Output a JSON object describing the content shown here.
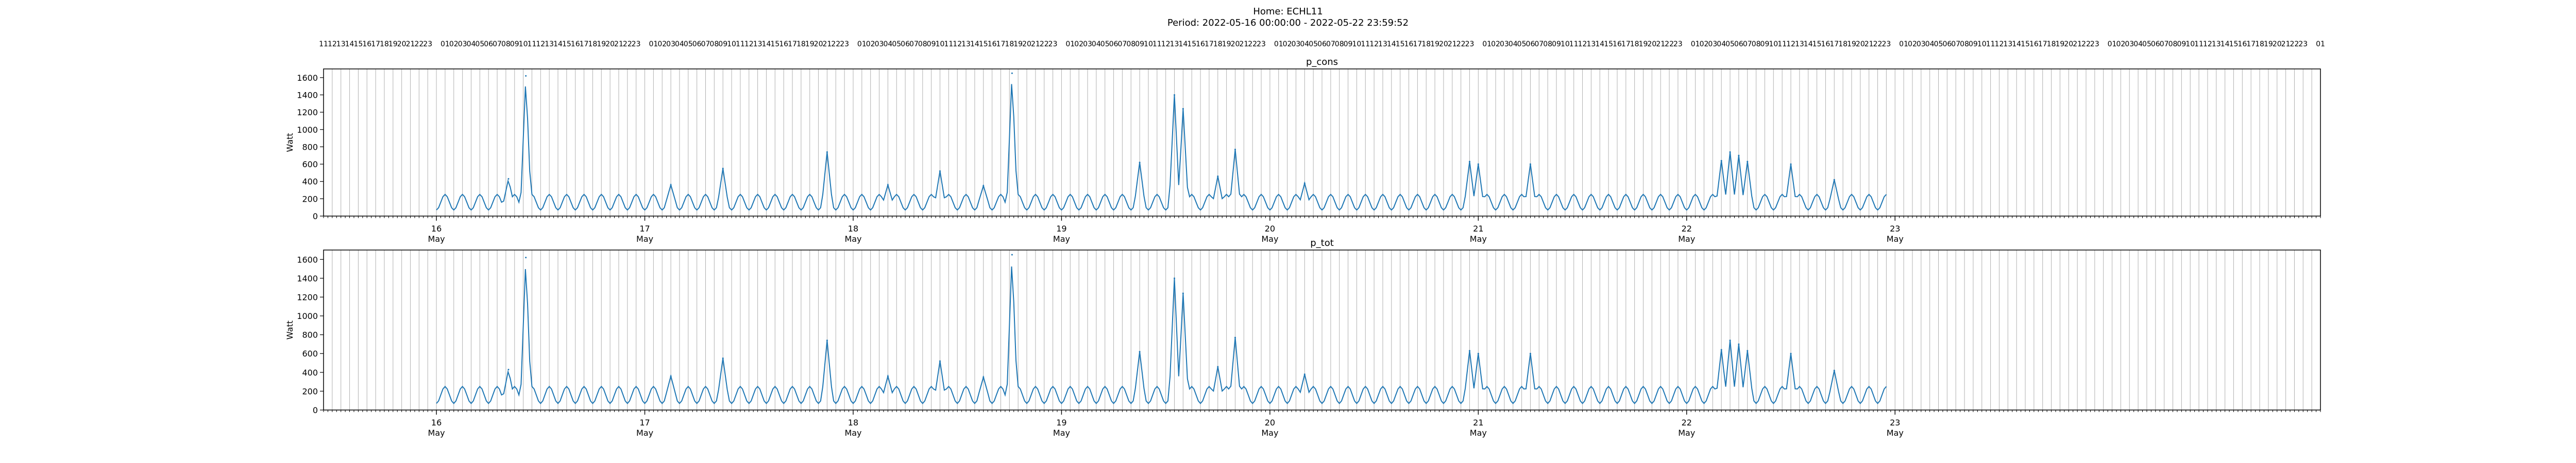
{
  "figure": {
    "title_line1": "Home: ECHL11",
    "title_line2": "Period: 2022-05-16 00:00:00 - 2022-05-22 23:59:52"
  },
  "colors": {
    "line": "#1f77b4",
    "grid": "#b0b0b0",
    "axis": "#000000"
  },
  "chart_data": [
    {
      "type": "line",
      "title": "p_cons",
      "xlabel": "",
      "ylabel": "Watt",
      "x_unit": "hours since 2022-05-16 00:00",
      "xlim": [
        -13,
        217
      ],
      "ylim": [
        0,
        1700
      ],
      "yticks": [
        0,
        200,
        400,
        600,
        800,
        1000,
        1200,
        1400,
        1600
      ],
      "grid": "vertical hourly lines",
      "hour_labels_top": true,
      "day_labels": [
        {
          "day": "16",
          "month": "May"
        },
        {
          "day": "17",
          "month": "May"
        },
        {
          "day": "18",
          "month": "May"
        },
        {
          "day": "19",
          "month": "May"
        },
        {
          "day": "20",
          "month": "May"
        },
        {
          "day": "21",
          "month": "May"
        },
        {
          "day": "22",
          "month": "May"
        },
        {
          "day": "23",
          "month": "May"
        }
      ],
      "baseline": {
        "start": 0,
        "end": 167,
        "low": 70,
        "high": 250,
        "period": 2
      },
      "spikes": [
        {
          "x": 8.3,
          "y": 430
        },
        {
          "x": 10.3,
          "y": 1620
        },
        {
          "x": 27.0,
          "y": 360
        },
        {
          "x": 33.0,
          "y": 550
        },
        {
          "x": 45.0,
          "y": 740
        },
        {
          "x": 52.0,
          "y": 360
        },
        {
          "x": 58.0,
          "y": 520
        },
        {
          "x": 63.0,
          "y": 350
        },
        {
          "x": 66.3,
          "y": 1650
        },
        {
          "x": 81.0,
          "y": 620
        },
        {
          "x": 85.0,
          "y": 1400
        },
        {
          "x": 86.0,
          "y": 1240
        },
        {
          "x": 90.0,
          "y": 460
        },
        {
          "x": 92.0,
          "y": 770
        },
        {
          "x": 100.0,
          "y": 380
        },
        {
          "x": 119.0,
          "y": 630
        },
        {
          "x": 120.0,
          "y": 600
        },
        {
          "x": 126.0,
          "y": 600
        },
        {
          "x": 148.0,
          "y": 640
        },
        {
          "x": 149.0,
          "y": 740
        },
        {
          "x": 150.0,
          "y": 700
        },
        {
          "x": 151.0,
          "y": 630
        },
        {
          "x": 156.0,
          "y": 600
        },
        {
          "x": 161.0,
          "y": 420
        }
      ]
    },
    {
      "type": "line",
      "title": "p_tot",
      "xlabel": "",
      "ylabel": "Watt",
      "x_unit": "hours since 2022-05-16 00:00",
      "xlim": [
        -13,
        217
      ],
      "ylim": [
        0,
        1700
      ],
      "yticks": [
        0,
        200,
        400,
        600,
        800,
        1000,
        1200,
        1400,
        1600
      ],
      "grid": "vertical hourly lines",
      "hour_labels_top": false,
      "day_labels": [
        {
          "day": "16",
          "month": "May"
        },
        {
          "day": "17",
          "month": "May"
        },
        {
          "day": "18",
          "month": "May"
        },
        {
          "day": "19",
          "month": "May"
        },
        {
          "day": "20",
          "month": "May"
        },
        {
          "day": "21",
          "month": "May"
        },
        {
          "day": "22",
          "month": "May"
        },
        {
          "day": "23",
          "month": "May"
        }
      ],
      "baseline": {
        "start": 0,
        "end": 167,
        "low": 70,
        "high": 250,
        "period": 2
      },
      "spikes": [
        {
          "x": 8.3,
          "y": 430
        },
        {
          "x": 10.3,
          "y": 1620
        },
        {
          "x": 27.0,
          "y": 360
        },
        {
          "x": 33.0,
          "y": 550
        },
        {
          "x": 45.0,
          "y": 740
        },
        {
          "x": 52.0,
          "y": 360
        },
        {
          "x": 58.0,
          "y": 520
        },
        {
          "x": 63.0,
          "y": 350
        },
        {
          "x": 66.3,
          "y": 1650
        },
        {
          "x": 81.0,
          "y": 620
        },
        {
          "x": 85.0,
          "y": 1400
        },
        {
          "x": 86.0,
          "y": 1240
        },
        {
          "x": 90.0,
          "y": 460
        },
        {
          "x": 92.0,
          "y": 770
        },
        {
          "x": 100.0,
          "y": 380
        },
        {
          "x": 119.0,
          "y": 630
        },
        {
          "x": 120.0,
          "y": 600
        },
        {
          "x": 126.0,
          "y": 600
        },
        {
          "x": 148.0,
          "y": 640
        },
        {
          "x": 149.0,
          "y": 740
        },
        {
          "x": 150.0,
          "y": 700
        },
        {
          "x": 151.0,
          "y": 630
        },
        {
          "x": 156.0,
          "y": 600
        },
        {
          "x": 161.0,
          "y": 420
        }
      ]
    }
  ]
}
